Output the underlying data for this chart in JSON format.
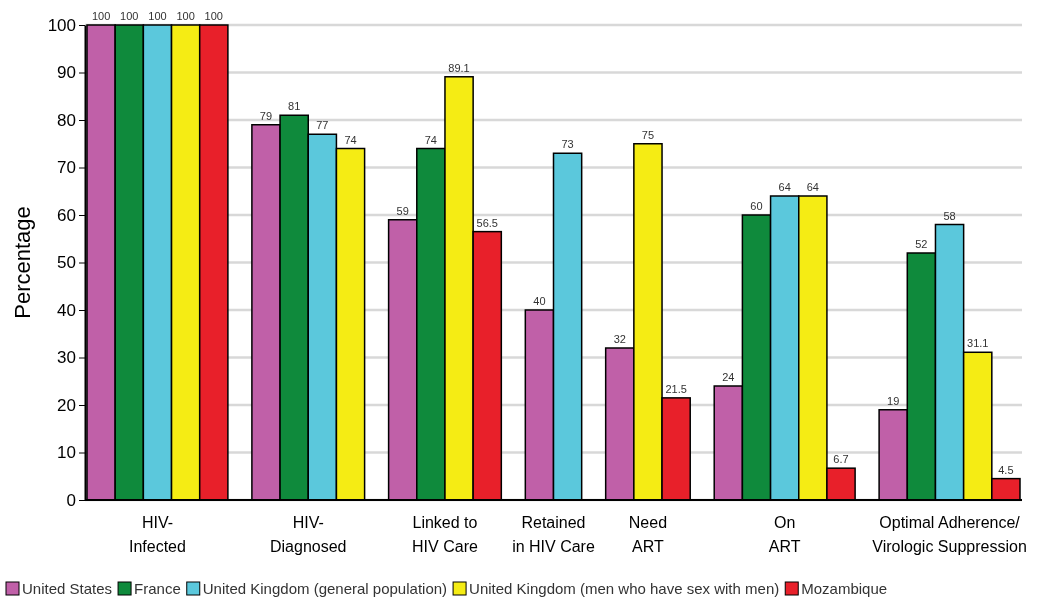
{
  "chart_data": {
    "type": "bar",
    "ylabel": "Percentage",
    "categories": [
      "HIV-\nInfected",
      "HIV-\nDiagnosed",
      "Linked to\nHIV Care",
      "Retained\nin HIV Care",
      "Need\nART",
      "On\nART",
      "Optimal Adherence/\nVirologic Suppression"
    ],
    "series": [
      {
        "name": "United States",
        "color": "#c060a8",
        "values": [
          100,
          79,
          59,
          40,
          32,
          24,
          19
        ]
      },
      {
        "name": "France",
        "color": "#0f8a3c",
        "values": [
          100,
          81,
          74,
          null,
          null,
          60,
          52
        ]
      },
      {
        "name": "United Kingdom (general population)",
        "color": "#5bc8dc",
        "values": [
          100,
          77,
          null,
          73,
          null,
          64,
          58
        ]
      },
      {
        "name": "United Kingdom (men who have sex with men)",
        "color": "#f5ec14",
        "values": [
          100,
          74,
          89.1,
          null,
          75,
          64,
          31.1
        ]
      },
      {
        "name": "Mozambique",
        "color": "#e8202a",
        "values": [
          100,
          null,
          56.5,
          null,
          21.5,
          6.7,
          4.5
        ]
      }
    ],
    "ylim": [
      0,
      100
    ],
    "yticks": [
      0,
      10,
      20,
      30,
      40,
      50,
      60,
      70,
      80,
      90,
      100
    ],
    "grid": "y",
    "data_labels": true,
    "legend": "bottom"
  }
}
